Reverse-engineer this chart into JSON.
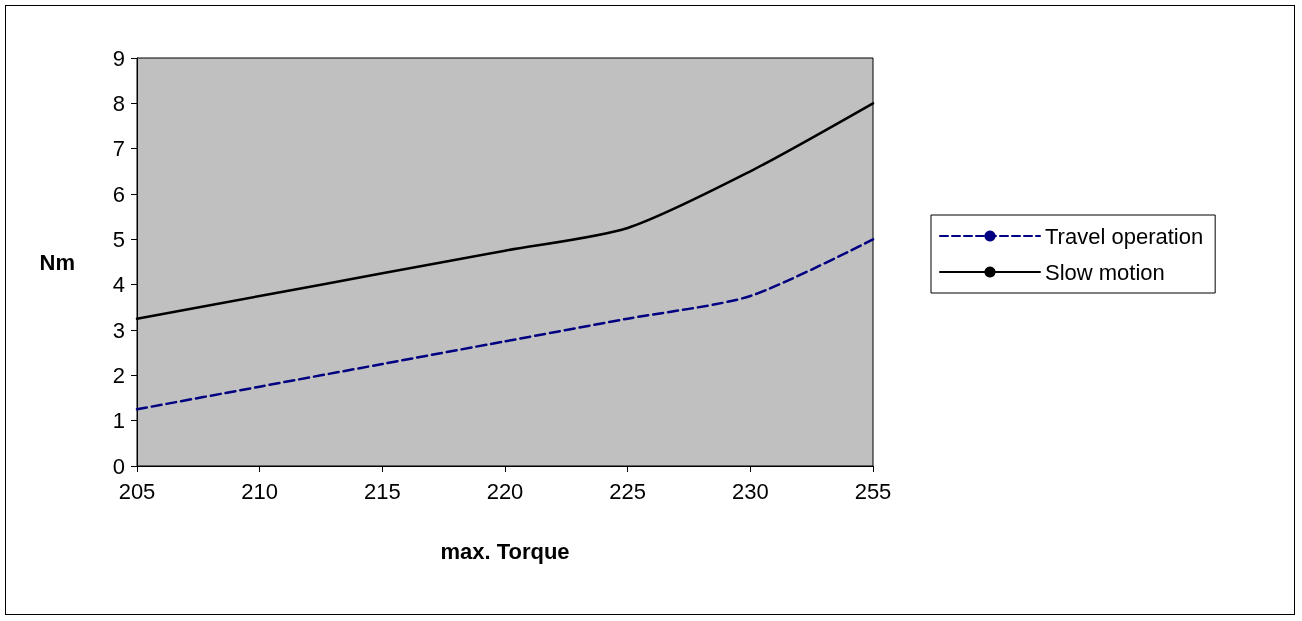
{
  "chart_data": {
    "type": "line",
    "xlabel": "max. Torque",
    "ylabel": "Nm",
    "categories": [
      "205",
      "210",
      "215",
      "220",
      "225",
      "230",
      "255"
    ],
    "series": [
      {
        "name": "Travel operation",
        "color": "#000080",
        "line_style": "dashed",
        "values": [
          1.25,
          1.75,
          2.25,
          2.75,
          3.25,
          3.75,
          5
        ]
      },
      {
        "name": "Slow motion",
        "color": "#000000",
        "line_style": "solid",
        "values": [
          3.25,
          3.75,
          4.25,
          4.75,
          5.25,
          6.5,
          8
        ]
      }
    ],
    "ylim": [
      0,
      9
    ],
    "yticks": [
      0,
      1,
      2,
      3,
      4,
      5,
      6,
      7,
      8,
      9
    ],
    "grid": false,
    "legend": "right",
    "marker": "none"
  }
}
